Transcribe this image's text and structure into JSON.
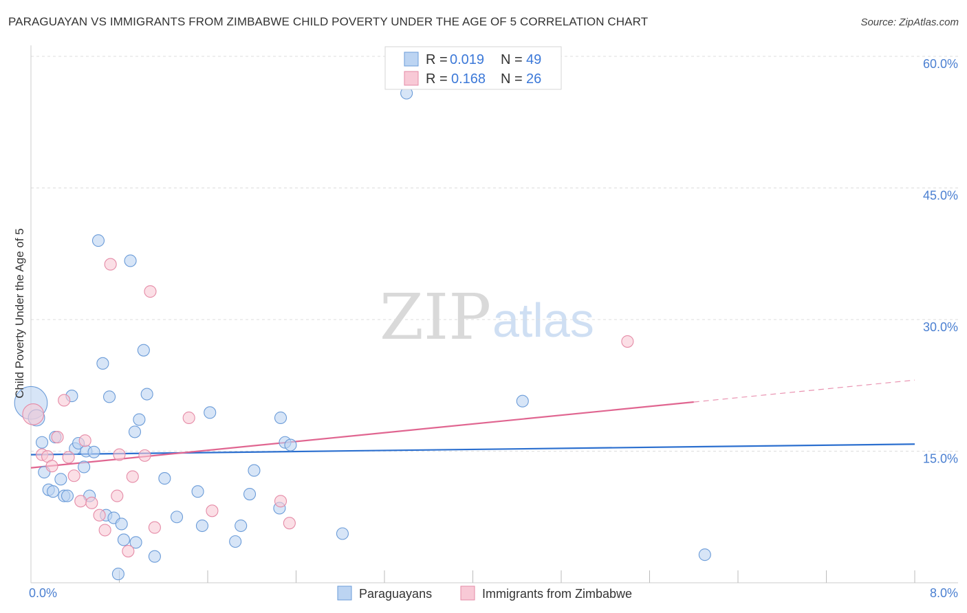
{
  "header": {
    "title": "PARAGUAYAN VS IMMIGRANTS FROM ZIMBABWE CHILD POVERTY UNDER THE AGE OF 5 CORRELATION CHART",
    "source": "Source: ZipAtlas.com"
  },
  "watermark": {
    "part1": "ZIP",
    "part2": "atlas"
  },
  "legend_top": {
    "r_label": "R =",
    "n_label": "N =",
    "rows": [
      {
        "r": "0.019",
        "n": "49"
      },
      {
        "r": "0.168",
        "n": "26"
      }
    ]
  },
  "legend_bottom": [
    "Paraguayans",
    "Immigrants from Zimbabwe"
  ],
  "colors": {
    "blue_fill": "#bcd4f2",
    "blue_stroke": "#6a9bd8",
    "blue_line": "#2b6fcf",
    "pink_fill": "#f8c9d6",
    "pink_stroke": "#e58aa6",
    "pink_line": "#e06590"
  },
  "chart_data": {
    "type": "scatter",
    "title": "PARAGUAYAN VS IMMIGRANTS FROM ZIMBABWE CHILD POVERTY UNDER THE AGE OF 5 CORRELATION CHART",
    "xlabel": "",
    "ylabel": "Child Poverty Under the Age of 5",
    "xlim": [
      0,
      8
    ],
    "ylim": [
      0,
      60
    ],
    "x_tick_labels": [
      {
        "value": 0,
        "label": "0.0%"
      },
      {
        "value": 8,
        "label": "8.0%"
      }
    ],
    "y_tick_labels": [
      {
        "value": 15,
        "label": "15.0%"
      },
      {
        "value": 30,
        "label": "30.0%"
      },
      {
        "value": 45,
        "label": "45.0%"
      },
      {
        "value": 60,
        "label": "60.0%"
      }
    ],
    "x_minor_ticks": [
      0.8,
      1.6,
      2.4,
      3.2,
      4.0,
      4.8,
      5.6,
      6.4,
      7.2,
      8.0
    ],
    "series": [
      {
        "name": "Paraguayans",
        "r": 0.019,
        "n": 49,
        "trend": {
          "x": [
            0,
            8
          ],
          "y": [
            14.6,
            15.8
          ],
          "dashed_from": null
        },
        "points": [
          [
            0.0,
            20.5,
            28
          ],
          [
            0.05,
            18.8,
            14
          ],
          [
            0.1,
            16.0,
            10
          ],
          [
            0.12,
            12.6,
            10
          ],
          [
            0.16,
            10.6,
            10
          ],
          [
            0.2,
            10.4,
            10
          ],
          [
            0.22,
            16.6,
            10
          ],
          [
            0.27,
            11.8,
            10
          ],
          [
            0.3,
            9.9,
            10
          ],
          [
            0.33,
            9.9,
            10
          ],
          [
            0.37,
            21.3,
            10
          ],
          [
            0.4,
            15.3,
            10
          ],
          [
            0.43,
            15.9,
            10
          ],
          [
            0.48,
            13.2,
            10
          ],
          [
            0.5,
            15.0,
            10
          ],
          [
            0.53,
            9.9,
            10
          ],
          [
            0.57,
            14.9,
            10
          ],
          [
            0.61,
            39.0,
            10
          ],
          [
            0.65,
            25.0,
            10
          ],
          [
            0.68,
            7.7,
            10
          ],
          [
            0.71,
            21.2,
            10
          ],
          [
            0.75,
            7.4,
            10
          ],
          [
            0.79,
            1.0,
            10
          ],
          [
            0.82,
            6.7,
            10
          ],
          [
            0.84,
            4.9,
            10
          ],
          [
            0.9,
            36.7,
            10
          ],
          [
            0.94,
            17.2,
            10
          ],
          [
            0.95,
            4.6,
            10
          ],
          [
            0.98,
            18.6,
            10
          ],
          [
            1.02,
            26.5,
            10
          ],
          [
            1.05,
            21.5,
            10
          ],
          [
            1.12,
            3.0,
            10
          ],
          [
            1.21,
            11.9,
            10
          ],
          [
            1.32,
            7.5,
            10
          ],
          [
            1.51,
            10.4,
            10
          ],
          [
            1.55,
            6.5,
            10
          ],
          [
            1.62,
            19.4,
            10
          ],
          [
            1.85,
            4.7,
            10
          ],
          [
            1.9,
            6.5,
            10
          ],
          [
            1.98,
            10.1,
            10
          ],
          [
            2.02,
            12.8,
            10
          ],
          [
            2.25,
            8.5,
            10
          ],
          [
            2.26,
            18.8,
            10
          ],
          [
            2.3,
            16.0,
            10
          ],
          [
            2.35,
            15.7,
            10
          ],
          [
            2.82,
            5.6,
            10
          ],
          [
            3.4,
            55.8,
            10
          ],
          [
            4.45,
            20.7,
            10
          ],
          [
            6.1,
            3.2,
            10
          ]
        ]
      },
      {
        "name": "Immigrants from Zimbabwe",
        "r": 0.168,
        "n": 26,
        "trend": {
          "x": [
            0,
            8
          ],
          "y": [
            13.1,
            23.1
          ],
          "dashed_from": 6.0
        },
        "points": [
          [
            0.02,
            19.2,
            18
          ],
          [
            0.1,
            14.6,
            10
          ],
          [
            0.15,
            14.4,
            10
          ],
          [
            0.19,
            13.3,
            10
          ],
          [
            0.24,
            16.6,
            10
          ],
          [
            0.3,
            20.8,
            10
          ],
          [
            0.34,
            14.3,
            10
          ],
          [
            0.39,
            12.2,
            10
          ],
          [
            0.45,
            9.3,
            10
          ],
          [
            0.49,
            16.2,
            10
          ],
          [
            0.55,
            9.1,
            10
          ],
          [
            0.62,
            7.7,
            10
          ],
          [
            0.67,
            6.0,
            10
          ],
          [
            0.72,
            36.3,
            10
          ],
          [
            0.78,
            9.9,
            10
          ],
          [
            0.8,
            14.6,
            10
          ],
          [
            0.88,
            3.6,
            10
          ],
          [
            0.92,
            12.1,
            10
          ],
          [
            1.03,
            14.5,
            10
          ],
          [
            1.08,
            33.2,
            10
          ],
          [
            1.12,
            6.3,
            10
          ],
          [
            1.43,
            18.8,
            10
          ],
          [
            1.64,
            8.2,
            10
          ],
          [
            2.26,
            9.3,
            10
          ],
          [
            2.34,
            6.8,
            10
          ],
          [
            5.4,
            27.5,
            10
          ]
        ]
      }
    ]
  }
}
